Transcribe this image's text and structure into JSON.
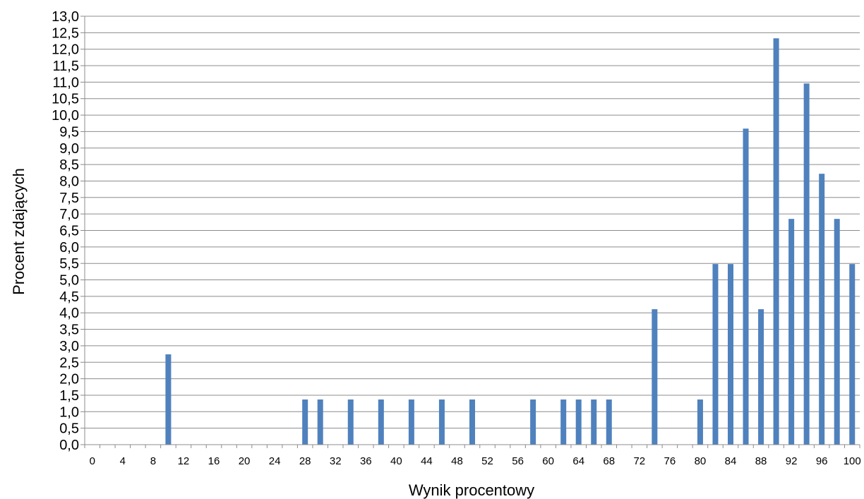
{
  "chart_data": {
    "type": "bar",
    "title": "",
    "xlabel": "Wynik procentowy",
    "ylabel": "Procent zdających",
    "ylim": [
      0,
      13
    ],
    "ytick_step": 0.5,
    "decimal_separator": ",",
    "grid": true,
    "legend": "none",
    "bar_color": "#4f81bd",
    "x_tick_labels": [
      "0",
      "4",
      "8",
      "12",
      "16",
      "20",
      "24",
      "28",
      "32",
      "36",
      "40",
      "44",
      "48",
      "52",
      "56",
      "60",
      "64",
      "68",
      "72",
      "76",
      "80",
      "84",
      "88",
      "92",
      "96",
      "100"
    ],
    "categories": [
      0,
      2,
      4,
      6,
      8,
      10,
      12,
      14,
      16,
      18,
      20,
      22,
      24,
      26,
      28,
      30,
      32,
      34,
      36,
      38,
      40,
      42,
      44,
      46,
      48,
      50,
      52,
      54,
      56,
      58,
      60,
      62,
      64,
      66,
      68,
      70,
      72,
      74,
      76,
      78,
      80,
      82,
      84,
      86,
      88,
      90,
      92,
      94,
      96,
      98,
      100
    ],
    "values": [
      0,
      0,
      0,
      0,
      0,
      2.74,
      0,
      0,
      0,
      0,
      0,
      0,
      0,
      0,
      1.37,
      1.37,
      0,
      1.37,
      0,
      1.37,
      0,
      1.37,
      0,
      1.37,
      0,
      1.37,
      0,
      0,
      0,
      1.37,
      0,
      1.37,
      1.37,
      1.37,
      1.37,
      0,
      0,
      4.11,
      0,
      0,
      1.37,
      5.48,
      5.48,
      9.59,
      4.11,
      12.33,
      6.85,
      10.96,
      8.22,
      6.85,
      5.48
    ]
  }
}
